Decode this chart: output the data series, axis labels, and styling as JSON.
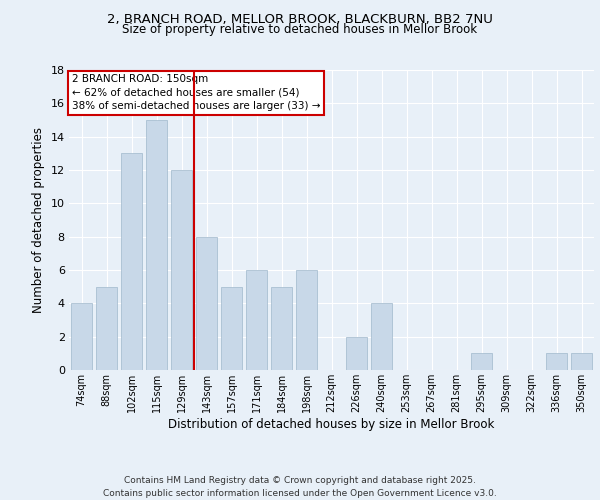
{
  "title_line1": "2, BRANCH ROAD, MELLOR BROOK, BLACKBURN, BB2 7NU",
  "title_line2": "Size of property relative to detached houses in Mellor Brook",
  "xlabel": "Distribution of detached houses by size in Mellor Brook",
  "ylabel": "Number of detached properties",
  "categories": [
    "74sqm",
    "88sqm",
    "102sqm",
    "115sqm",
    "129sqm",
    "143sqm",
    "157sqm",
    "171sqm",
    "184sqm",
    "198sqm",
    "212sqm",
    "226sqm",
    "240sqm",
    "253sqm",
    "267sqm",
    "281sqm",
    "295sqm",
    "309sqm",
    "322sqm",
    "336sqm",
    "350sqm"
  ],
  "values": [
    4,
    5,
    13,
    15,
    12,
    8,
    5,
    6,
    5,
    6,
    0,
    2,
    4,
    0,
    0,
    0,
    1,
    0,
    0,
    1,
    1
  ],
  "bar_color": "#c8d8e8",
  "bar_edge_color": "#a0b8cc",
  "vline_index": 4.5,
  "vline_color": "#cc0000",
  "annotation_text": "2 BRANCH ROAD: 150sqm\n← 62% of detached houses are smaller (54)\n38% of semi-detached houses are larger (33) →",
  "annotation_box_color": "#cc0000",
  "ylim": [
    0,
    18
  ],
  "yticks": [
    0,
    2,
    4,
    6,
    8,
    10,
    12,
    14,
    16,
    18
  ],
  "footer": "Contains HM Land Registry data © Crown copyright and database right 2025.\nContains public sector information licensed under the Open Government Licence v3.0.",
  "bg_color": "#e8f0f8",
  "plot_bg_color": "#e8f0f8"
}
